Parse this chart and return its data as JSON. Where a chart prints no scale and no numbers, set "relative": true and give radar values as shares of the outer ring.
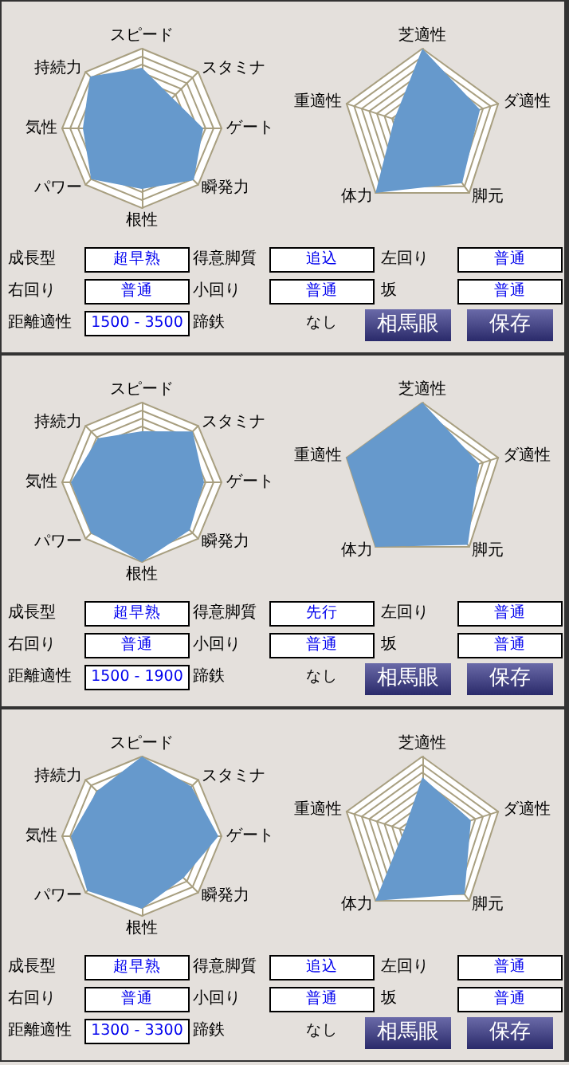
{
  "chart_data": [
    {
      "type": "radar",
      "relative": true,
      "grid": true,
      "categories": [
        "スピード",
        "スタミナ",
        "ゲート",
        "瞬発力",
        "根性",
        "パワー",
        "気性",
        "持続力"
      ],
      "series": [
        {
          "color": "#6699cc",
          "values": [
            0.76,
            0.54,
            0.77,
            0.92,
            0.76,
            0.9,
            0.74,
            0.92
          ]
        }
      ]
    },
    {
      "type": "radar",
      "relative": true,
      "grid": true,
      "categories": [
        "芝適性",
        "ダ適性",
        "脚元",
        "体力",
        "重適性"
      ],
      "series": [
        {
          "color": "#6699cc",
          "values": [
            1,
            0.76,
            0.85,
            1,
            0.37
          ]
        }
      ]
    },
    {
      "type": "other",
      "annotations": [
        "成長型",
        "超早熟",
        "得意脚質",
        "追込",
        "左回り",
        "普通",
        "右回り",
        "普通",
        "小回り",
        "普通",
        "坂",
        "普通",
        "距離適性",
        "1500 - 3500",
        "蹄鉄",
        "なし",
        "相馬眼",
        "保存"
      ]
    },
    {
      "type": "radar",
      "relative": true,
      "grid": true,
      "categories": [
        "スピード",
        "スタミナ",
        "ゲート",
        "瞬発力",
        "根性",
        "パワー",
        "気性",
        "持続力"
      ],
      "series": [
        {
          "color": "#6699cc",
          "values": [
            0.64,
            0.9,
            0.78,
            0.85,
            1,
            0.9,
            0.89,
            0.78
          ]
        }
      ]
    },
    {
      "type": "radar",
      "relative": true,
      "grid": true,
      "categories": [
        "芝適性",
        "ダ適性",
        "脚元",
        "体力",
        "重適性"
      ],
      "series": [
        {
          "color": "#6699cc",
          "values": [
            1,
            0.75,
            0.97,
            1,
            1
          ]
        }
      ]
    },
    {
      "type": "other",
      "annotations": [
        "成長型",
        "超早熟",
        "得意脚質",
        "先行",
        "左回り",
        "普通",
        "右回り",
        "普通",
        "小回り",
        "普通",
        "坂",
        "普通",
        "距離適性",
        "1500 - 1900",
        "蹄鉄",
        "なし",
        "相馬眼",
        "保存"
      ]
    },
    {
      "type": "radar",
      "relative": true,
      "grid": true,
      "categories": [
        "スピード",
        "スタミナ",
        "ゲート",
        "瞬発力",
        "根性",
        "パワー",
        "気性",
        "持続力"
      ],
      "series": [
        {
          "color": "#6699cc",
          "values": [
            1,
            0.88,
            0.96,
            0.74,
            0.91,
            0.97,
            0.89,
            0.8
          ]
        }
      ]
    },
    {
      "type": "radar",
      "relative": true,
      "grid": true,
      "categories": [
        "芝適性",
        "ダ適性",
        "脚元",
        "体力",
        "重適性"
      ],
      "series": [
        {
          "color": "#6699cc",
          "values": [
            0.74,
            0.64,
            0.9,
            1,
            0.24
          ]
        }
      ]
    },
    {
      "type": "other",
      "annotations": [
        "成長型",
        "超早熟",
        "得意脚質",
        "追込",
        "左回り",
        "普通",
        "右回り",
        "普通",
        "小回り",
        "普通",
        "坂",
        "普通",
        "距離適性",
        "1300 - 3300",
        "蹄鉄",
        "なし",
        "相馬眼",
        "保存"
      ]
    }
  ]
}
